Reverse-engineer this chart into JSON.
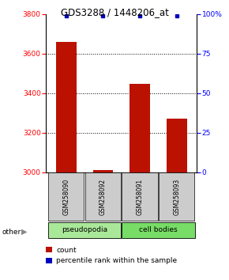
{
  "title": "GDS3288 / 1448206_at",
  "samples": [
    "GSM258090",
    "GSM258092",
    "GSM258091",
    "GSM258093"
  ],
  "counts": [
    3660,
    3010,
    3445,
    3270
  ],
  "percentiles": [
    99,
    99,
    99,
    99
  ],
  "ylim_left": [
    3000,
    3800
  ],
  "ylim_right": [
    0,
    100
  ],
  "yticks_left": [
    3000,
    3200,
    3400,
    3600,
    3800
  ],
  "yticks_right": [
    0,
    25,
    50,
    75,
    100
  ],
  "bar_color": "#bb1100",
  "dot_color": "#0000bb",
  "gridline_ticks": [
    3200,
    3400,
    3600
  ],
  "groups": [
    {
      "label": "pseudopodia",
      "color": "#aae899",
      "span": [
        0,
        2
      ]
    },
    {
      "label": "cell bodies",
      "color": "#77dd66",
      "span": [
        2,
        4
      ]
    }
  ],
  "other_label": "other",
  "legend_items": [
    {
      "color": "#bb1100",
      "label": "count"
    },
    {
      "color": "#0000bb",
      "label": "percentile rank within the sample"
    }
  ]
}
